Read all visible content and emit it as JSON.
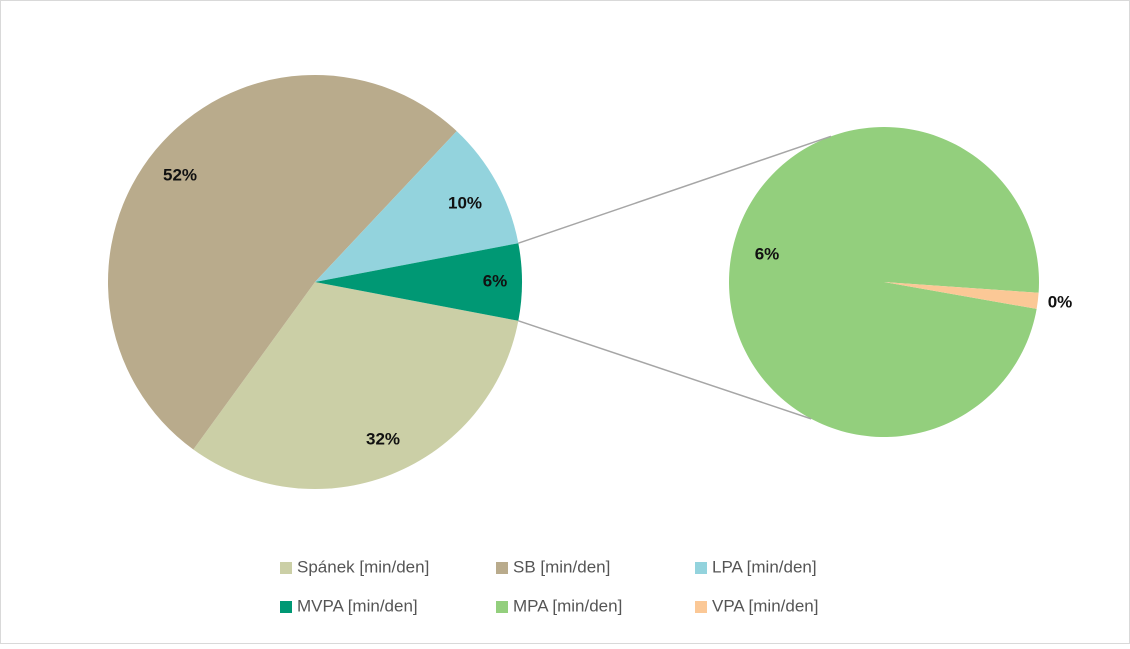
{
  "chart_data": {
    "type": "pie-of-pie",
    "categories": [
      "Spánek [min/den]",
      "SB [min/den]",
      "LPA [min/den]",
      "MVPA [min/den]"
    ],
    "values": [
      32,
      52,
      10,
      6
    ],
    "value_labels": [
      "32%",
      "52%",
      "10%",
      "6%"
    ],
    "colors": [
      "#cbcfa6",
      "#b9ab8c",
      "#93d3dd",
      "#009874"
    ],
    "secondary": {
      "categories": [
        "MPA [min/den]",
        "VPA [min/den]"
      ],
      "values": [
        5.9,
        0.1
      ],
      "value_labels": [
        "6%",
        "0%"
      ],
      "colors": [
        "#93cf7d",
        "#fbc896"
      ]
    }
  }
}
